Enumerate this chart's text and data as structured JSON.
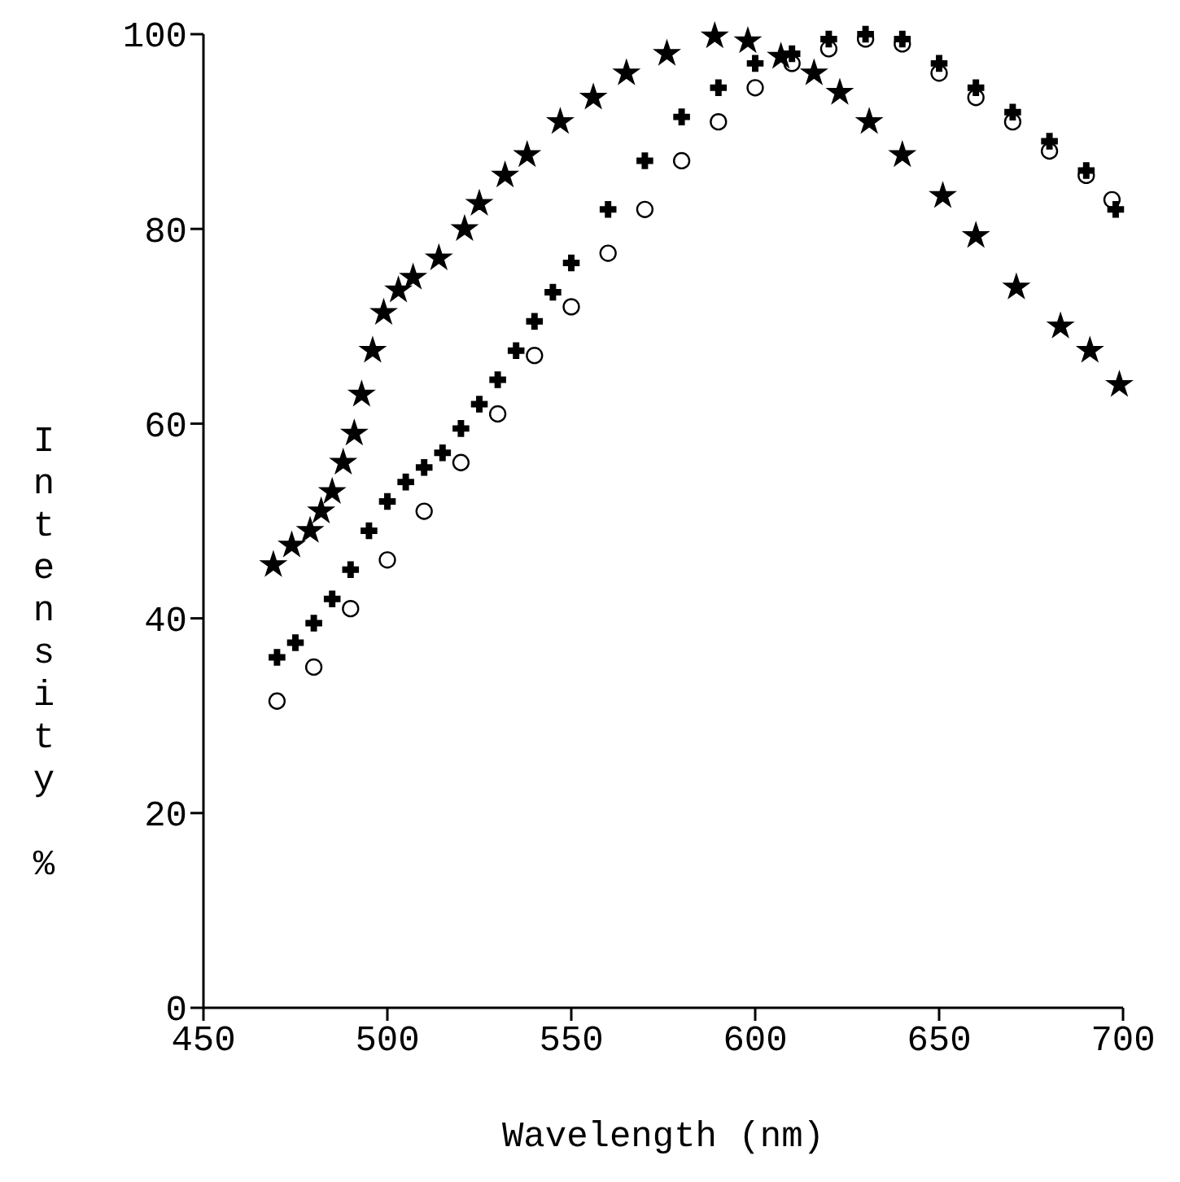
{
  "chart_data": {
    "type": "scatter",
    "xlabel": "Wavelength (nm)",
    "ylabel": "Intensity %",
    "xlim": [
      450,
      700
    ],
    "ylim": [
      0,
      100
    ],
    "xticks": [
      450,
      500,
      550,
      600,
      650,
      700
    ],
    "yticks": [
      0,
      20,
      40,
      60,
      80,
      100
    ],
    "grid": false,
    "series": [
      {
        "color": "#000000",
        "marker": "star",
        "x": [
          469,
          474,
          479,
          482,
          485,
          488,
          491,
          493,
          496,
          499,
          503,
          507,
          514,
          521,
          525,
          532,
          538,
          547,
          556,
          565,
          576,
          589,
          598,
          607,
          616,
          623,
          631,
          640,
          651,
          660,
          671,
          683,
          691,
          699
        ],
        "values": [
          45.5,
          47.5,
          49,
          51,
          53,
          56,
          59,
          63,
          67.5,
          71.4,
          73.7,
          75,
          77,
          80,
          82.6,
          85.5,
          87.6,
          91,
          93.5,
          96,
          98,
          99.8,
          99.3,
          97.7,
          96,
          94,
          91,
          87.6,
          83.4,
          79.3,
          74,
          70,
          67.5,
          64
        ]
      },
      {
        "color": "#000000",
        "marker": "circle",
        "x": [
          470,
          480,
          490,
          500,
          510,
          520,
          530,
          540,
          550,
          560,
          570,
          580,
          590,
          600,
          610,
          620,
          630,
          640,
          650,
          660,
          670,
          680,
          690,
          697
        ],
        "values": [
          31.5,
          35,
          41,
          46,
          51,
          56,
          61,
          67,
          72,
          77.5,
          82,
          87,
          91,
          94.5,
          97,
          98.5,
          99.5,
          99,
          96,
          93.5,
          91,
          88,
          85.5,
          83
        ]
      },
      {
        "color": "#000000",
        "marker": "cross",
        "x": [
          470,
          475,
          480,
          485,
          490,
          495,
          500,
          505,
          510,
          515,
          520,
          525,
          530,
          535,
          540,
          545,
          550,
          560,
          570,
          580,
          590,
          600,
          610,
          620,
          630,
          640,
          650,
          660,
          670,
          680,
          690,
          698
        ],
        "values": [
          36,
          37.5,
          39.5,
          42,
          45,
          49,
          52,
          54,
          55.5,
          57,
          59.5,
          62,
          64.5,
          67.5,
          70.5,
          73.5,
          76.5,
          82,
          87,
          91.5,
          94.5,
          97,
          98,
          99.5,
          100,
          99.5,
          97,
          94.5,
          92,
          89,
          86,
          82
        ]
      }
    ]
  }
}
